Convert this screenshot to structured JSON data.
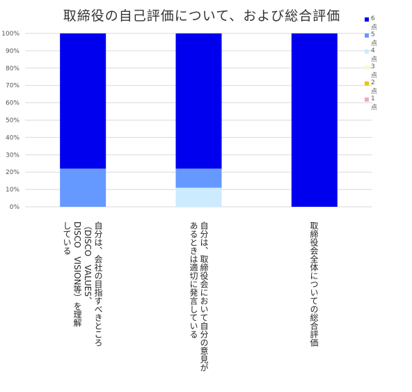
{
  "chart_data": {
    "type": "bar",
    "stacked": true,
    "title": "取締役の自己評価について、および総合評価",
    "categories": [
      "自分は、会社の目指すべきところ\n（DISCO　VALUES、\nDISCO　VISION等）を理解\nしている",
      "自分は、取締役会において自分の意見が\nあるときは適切に発言している",
      "取締役会全体についての総合評価"
    ],
    "yticks": [
      "0%",
      "10%",
      "20%",
      "30%",
      "40%",
      "50%",
      "60%",
      "70%",
      "80%",
      "90%",
      "100%"
    ],
    "ylim": [
      0,
      100
    ],
    "grid": true,
    "legend_position": "right",
    "series": [
      {
        "name": "1点",
        "color": "#f4a6c1",
        "values": [
          0,
          0,
          0
        ]
      },
      {
        "name": "2点",
        "color": "#f2c200",
        "values": [
          0,
          0,
          0
        ]
      },
      {
        "name": "3点",
        "color": "#fdf7c6",
        "values": [
          0,
          0,
          0
        ]
      },
      {
        "name": "4点",
        "color": "#ccebff",
        "values": [
          0,
          11,
          0
        ]
      },
      {
        "name": "5点",
        "color": "#6699ff",
        "values": [
          22,
          11,
          0
        ]
      },
      {
        "name": "6点",
        "color": "#0000ee",
        "values": [
          78,
          78,
          100
        ]
      }
    ]
  }
}
